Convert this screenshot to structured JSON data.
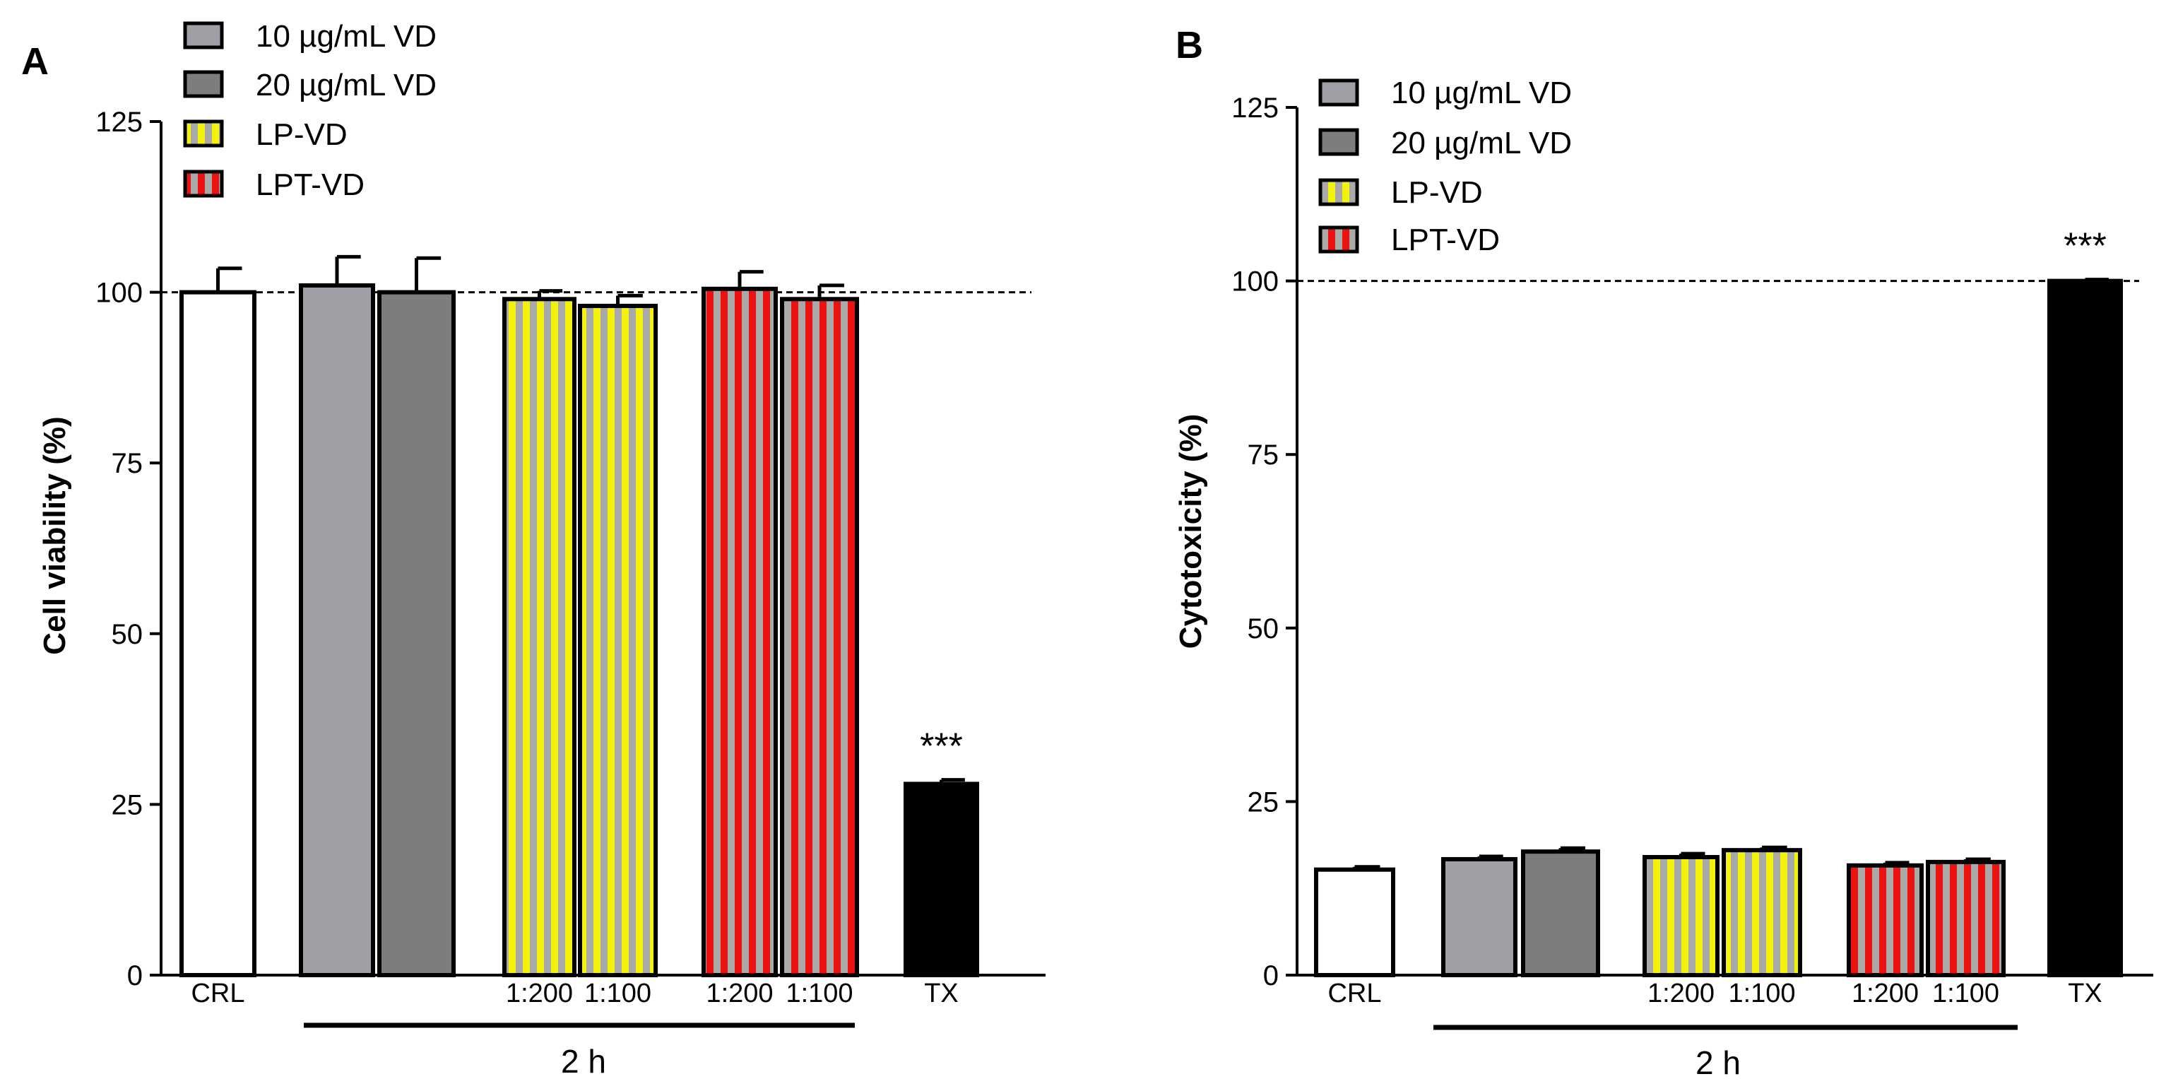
{
  "colors": {
    "control": "#ffffff",
    "vd10": "#9f9fa6",
    "vd20": "#7d7d7d",
    "lp_yellow": "#f2f20a",
    "lp_grey": "#a9a9a9",
    "lpt_red": "#ee1111",
    "lpt_grey": "#a9a9a9",
    "tx": "#000000",
    "axis": "#000000"
  },
  "chart_data": [
    {
      "panel_label": "A",
      "type": "bar",
      "ylabel": "Cell viability (%)",
      "ylim": [
        0,
        125
      ],
      "yticks": [
        "0",
        "25",
        "50",
        "75",
        "100",
        "125"
      ],
      "reference_line": 100,
      "legend": [
        "10 µg/mL VD",
        "20 µg/mL VD",
        "LP-VD",
        "LPT-VD"
      ],
      "legend_position": "top-left",
      "group_label": "2 h",
      "bars": [
        {
          "series": "control",
          "value": 100,
          "error": 3.5,
          "xlabel": "CRL"
        },
        {
          "series": "10 µg/mL VD",
          "value": 101,
          "error": 4.2,
          "xlabel": ""
        },
        {
          "series": "20 µg/mL VD",
          "value": 100,
          "error": 5.0,
          "xlabel": ""
        },
        {
          "series": "LP-VD",
          "value": 99,
          "error": 1.2,
          "xlabel": "1:200"
        },
        {
          "series": "LP-VD",
          "value": 98,
          "error": 1.5,
          "xlabel": "1:100"
        },
        {
          "series": "LPT-VD",
          "value": 100.5,
          "error": 2.5,
          "xlabel": "1:200"
        },
        {
          "series": "LPT-VD",
          "value": 99,
          "error": 2.0,
          "xlabel": "1:100"
        },
        {
          "series": "TX",
          "value": 28,
          "error": 0.6,
          "xlabel": "TX",
          "annotation": "***"
        }
      ]
    },
    {
      "panel_label": "B",
      "type": "bar",
      "ylabel": "Cytotoxicity (%)",
      "ylim": [
        0,
        125
      ],
      "yticks": [
        "0",
        "25",
        "50",
        "75",
        "100",
        "125"
      ],
      "reference_line": 100,
      "legend": [
        "10 µg/mL VD",
        "20 µg/mL VD",
        "LP-VD",
        "LPT-VD"
      ],
      "legend_position": "top-left",
      "group_label": "2 h",
      "bars": [
        {
          "series": "control",
          "value": 15.2,
          "error": 0.4,
          "xlabel": "CRL"
        },
        {
          "series": "10 µg/mL VD",
          "value": 16.7,
          "error": 0.4,
          "xlabel": ""
        },
        {
          "series": "20 µg/mL VD",
          "value": 17.8,
          "error": 0.5,
          "xlabel": ""
        },
        {
          "series": "LP-VD",
          "value": 17.0,
          "error": 0.5,
          "xlabel": "1:200"
        },
        {
          "series": "LP-VD",
          "value": 18.0,
          "error": 0.4,
          "xlabel": "1:100"
        },
        {
          "series": "LPT-VD",
          "value": 15.8,
          "error": 0.4,
          "xlabel": "1:200"
        },
        {
          "series": "LPT-VD",
          "value": 16.3,
          "error": 0.4,
          "xlabel": "1:100"
        },
        {
          "series": "TX",
          "value": 100,
          "error": 0.2,
          "xlabel": "TX",
          "annotation": "***"
        }
      ]
    }
  ]
}
